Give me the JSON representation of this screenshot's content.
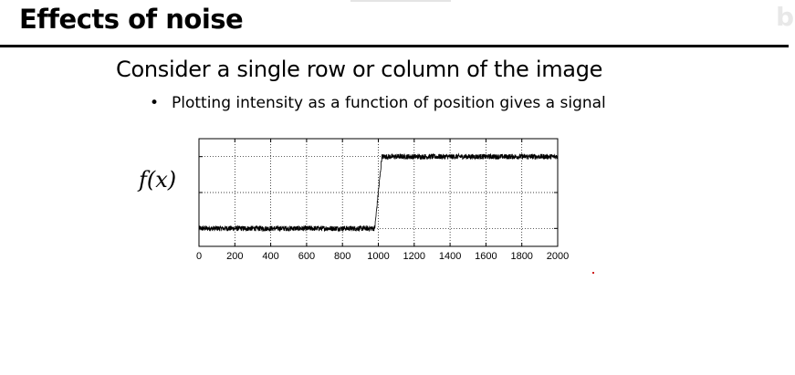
{
  "slide": {
    "title": "Effects of noise",
    "heading": "Consider a single row or column of the image",
    "bullet": "Plotting intensity as a function of position gives a signal",
    "bullet_marker": "•"
  },
  "chart_data": {
    "type": "line",
    "title": "",
    "ylabel": "f(x)",
    "xlabel": "",
    "xlim": [
      0,
      2000
    ],
    "ylim": [
      0,
      1.2
    ],
    "xticks": [
      0,
      200,
      400,
      600,
      800,
      1000,
      1200,
      1400,
      1600,
      1800,
      2000
    ],
    "yticks": [
      0.2,
      0.6,
      1.0
    ],
    "grid": true,
    "grid_style": "dotted",
    "series": [
      {
        "color": "#000000",
        "points": [
          [
            0,
            0.2
          ],
          [
            980,
            0.2
          ],
          [
            1020,
            1.0
          ],
          [
            2000,
            1.0
          ]
        ],
        "noise_amplitude": 0.03
      }
    ]
  }
}
